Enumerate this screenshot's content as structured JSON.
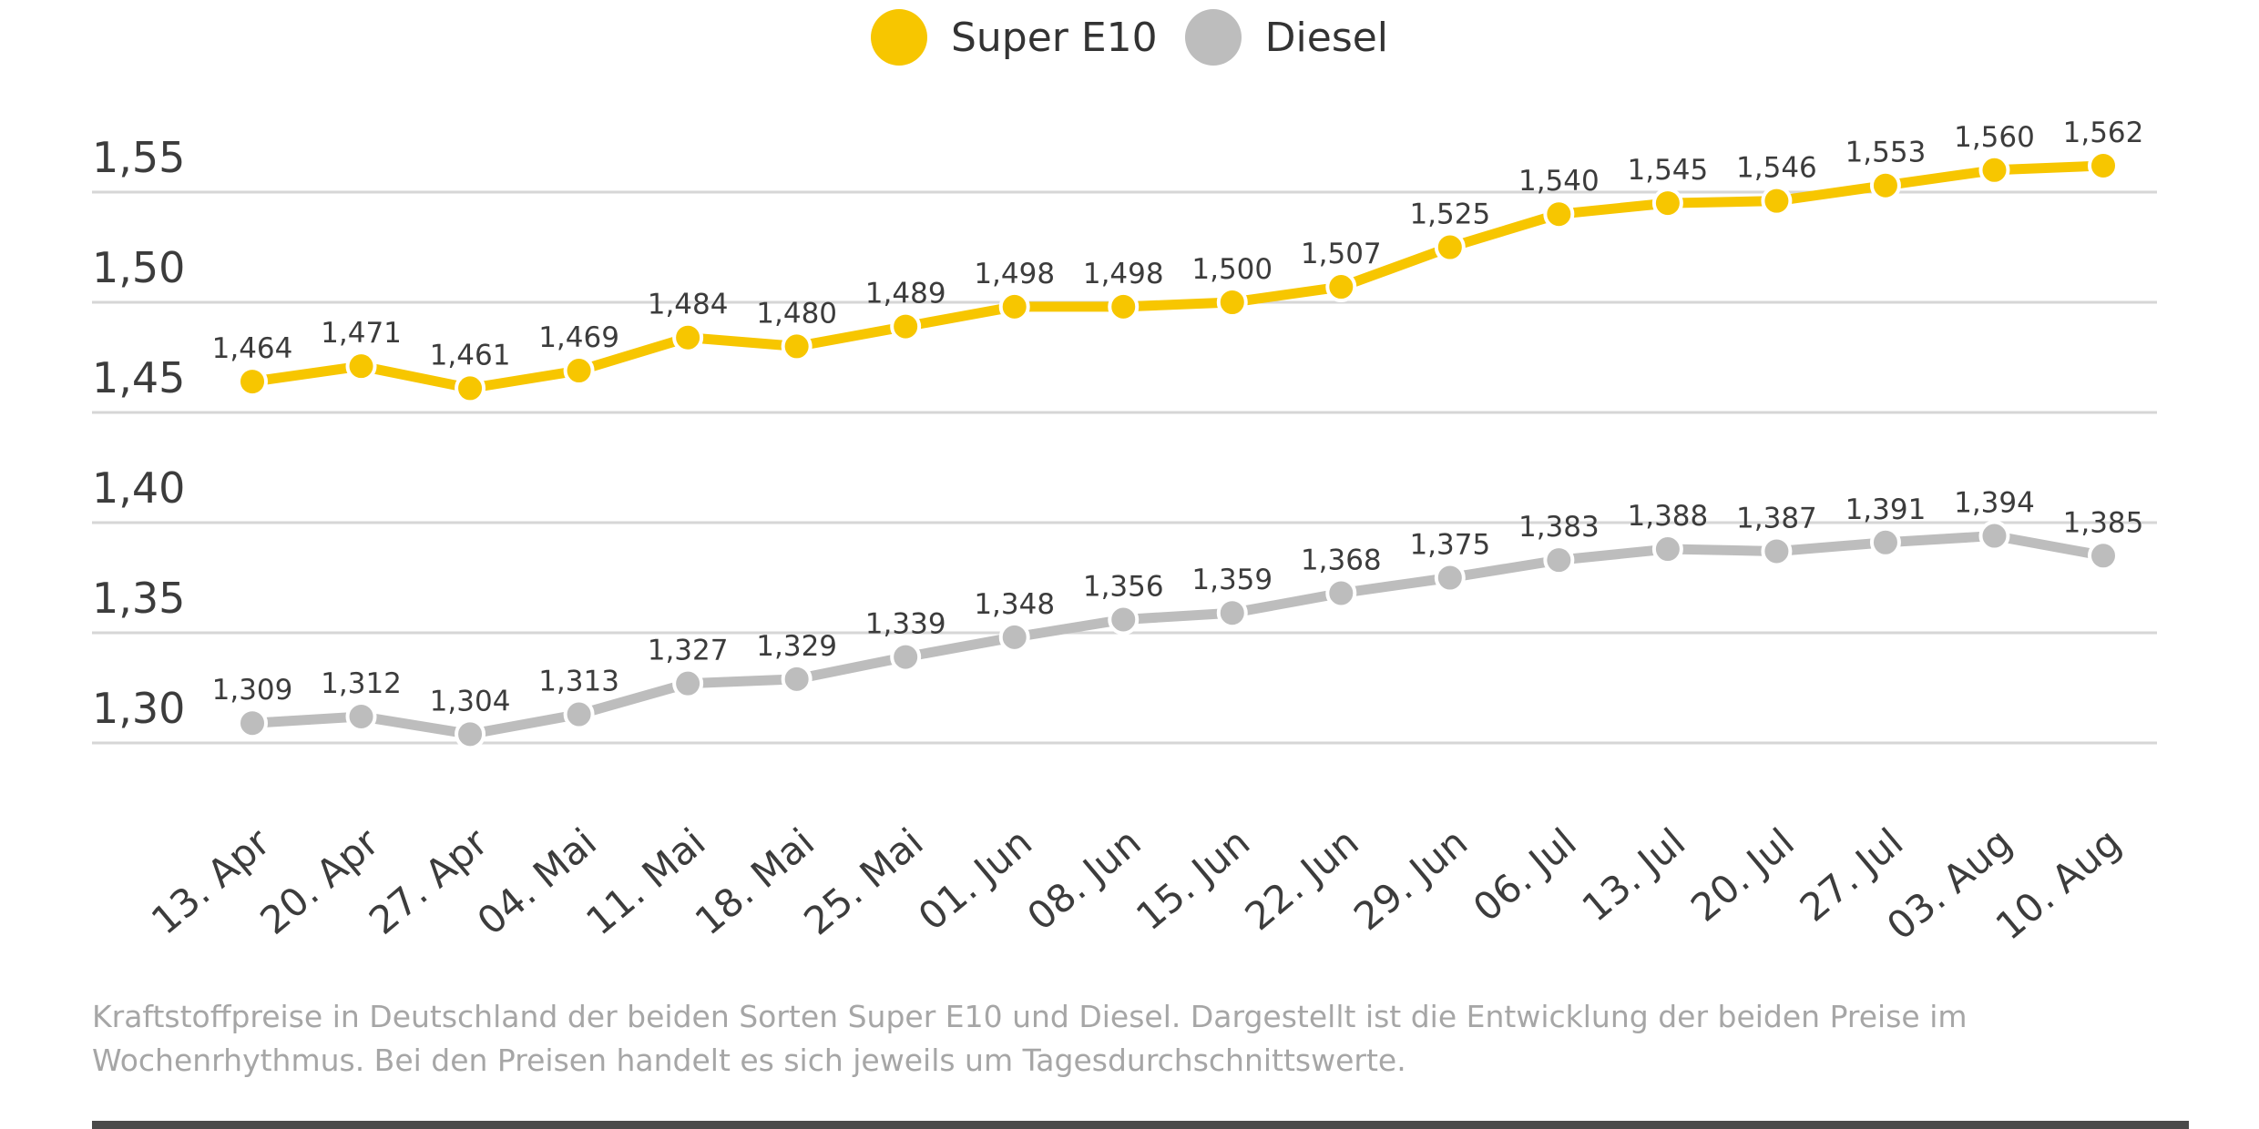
{
  "legend": {
    "items": [
      {
        "label": "Super E10",
        "color": "#f7c600"
      },
      {
        "label": "Diesel",
        "color": "#bdbdbd"
      }
    ]
  },
  "caption": {
    "line1": "Kraftstoffpreise in Deutschland der beiden Sorten Super E10 und Diesel. Dargestellt ist die Entwicklung der beiden Preise im",
    "line2": "Wochenrhythmus. Bei den Preisen handelt es sich jeweils um Tagesdurchschnittswerte."
  },
  "chart_data": {
    "type": "line",
    "categories": [
      "13. Apr",
      "20. Apr",
      "27. Apr",
      "04. Mai",
      "11. Mai",
      "18. Mai",
      "25. Mai",
      "01. Jun",
      "08. Jun",
      "15. Jun",
      "22. Jun",
      "29. Jun",
      "06. Jul",
      "13. Jul",
      "20. Jul",
      "27. Jul",
      "03. Aug",
      "10. Aug"
    ],
    "series": [
      {
        "name": "Super E10",
        "color": "#f7c600",
        "values": [
          1.464,
          1.471,
          1.461,
          1.469,
          1.484,
          1.48,
          1.489,
          1.498,
          1.498,
          1.5,
          1.507,
          1.525,
          1.54,
          1.545,
          1.546,
          1.553,
          1.56,
          1.562
        ],
        "labels": [
          "1,464",
          "1,471",
          "1,461",
          "1,469",
          "1,484",
          "1,480",
          "1,489",
          "1,498",
          "1,498",
          "1,500",
          "1,507",
          "1,525",
          "1,540",
          "1,545",
          "1,546",
          "1,553",
          "1,560",
          "1,562"
        ]
      },
      {
        "name": "Diesel",
        "color": "#bdbdbd",
        "values": [
          1.309,
          1.312,
          1.304,
          1.313,
          1.327,
          1.329,
          1.339,
          1.348,
          1.356,
          1.359,
          1.368,
          1.375,
          1.383,
          1.388,
          1.387,
          1.391,
          1.394,
          1.385
        ],
        "labels": [
          "1,309",
          "1,312",
          "1,304",
          "1,313",
          "1,327",
          "1,329",
          "1,339",
          "1,348",
          "1,356",
          "1,359",
          "1,368",
          "1,375",
          "1,383",
          "1,388",
          "1,387",
          "1,391",
          "1,394",
          "1,385"
        ]
      }
    ],
    "yticks": [
      1.3,
      1.35,
      1.4,
      1.45,
      1.5,
      1.55
    ],
    "ytick_labels": [
      "1,30",
      "1,35",
      "1,40",
      "1,45",
      "1,50",
      "1,55"
    ],
    "ylim": [
      1.3,
      1.55
    ],
    "grid": true,
    "legend_position": "top-center",
    "title": "",
    "xlabel": "",
    "ylabel": ""
  }
}
